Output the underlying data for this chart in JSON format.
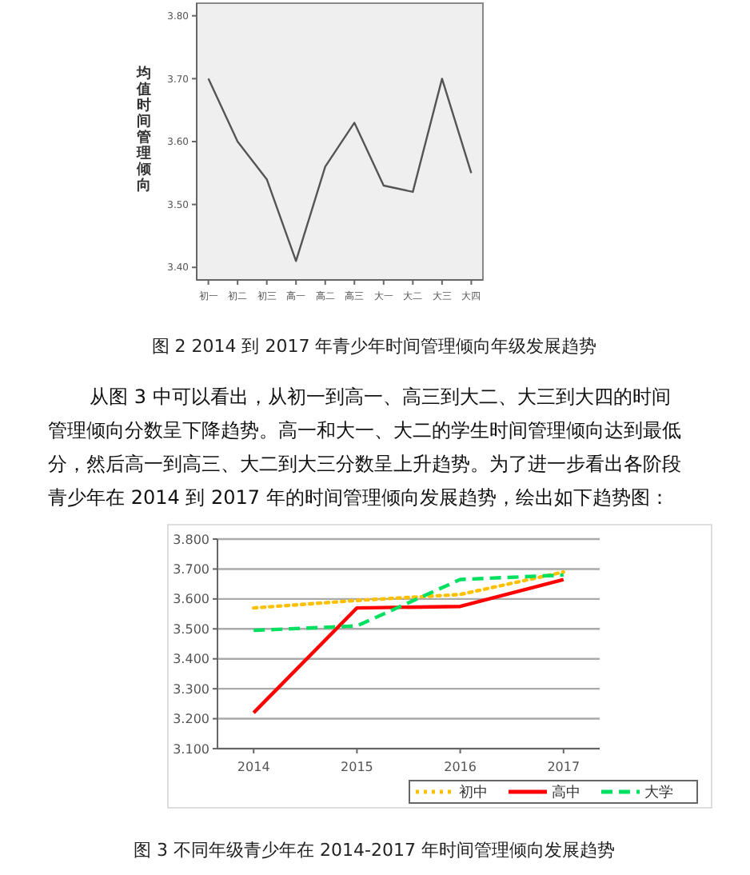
{
  "chart_data": [
    {
      "type": "line",
      "ylabel": "均值时间管理倾向",
      "categories": [
        "初一",
        "初二",
        "初三",
        "高一",
        "高二",
        "高三",
        "大一",
        "大二",
        "大三",
        "大四"
      ],
      "values": [
        3.7,
        3.6,
        3.54,
        3.41,
        3.56,
        3.63,
        3.53,
        3.52,
        3.7,
        3.55
      ],
      "color": "#555555",
      "ylim": [
        3.38,
        3.82
      ],
      "yticks": [
        {
          "value": 3.4,
          "label": "3.40"
        },
        {
          "value": 3.5,
          "label": "3.50"
        },
        {
          "value": 3.6,
          "label": "3.60"
        },
        {
          "value": 3.7,
          "label": "3.70"
        },
        {
          "value": 3.8,
          "label": "3.80"
        }
      ],
      "grid": false,
      "legend": false,
      "annotations": [
        "图 2 2014 到 2017 年青少年时间管理倾向年级发展趋势",
        "从图 3 中可以看出，从初一到高一、高三到大二、大三到大四的时间管理倾向分数呈下降趋势。高一和大一、大二的学生时间管理倾向达到最低分，然后高一到高三、大二到大三分数呈上升趋势。为了进一步看出各阶段青少年在 2014 到 2017 年的时间管理倾向发展趋势，绘出如下趋势图："
      ]
    },
    {
      "type": "line",
      "categories": [
        "2014",
        "2015",
        "2016",
        "2017"
      ],
      "series": [
        {
          "name": "初中",
          "color": "#ffc000",
          "line_style": "dotted",
          "values": [
            3.57,
            3.595,
            3.615,
            3.69
          ]
        },
        {
          "name": "高中",
          "color": "#ff0000",
          "line_style": "solid",
          "values": [
            3.22,
            3.57,
            3.575,
            3.665
          ]
        },
        {
          "name": "大学",
          "color": "#00e060",
          "line_style": "dashed",
          "values": [
            3.495,
            3.51,
            3.665,
            3.68
          ]
        }
      ],
      "ylim": [
        3.1,
        3.8
      ],
      "yticks": [
        {
          "value": 3.1,
          "label": "3.100"
        },
        {
          "value": 3.2,
          "label": "3.200"
        },
        {
          "value": 3.3,
          "label": "3.300"
        },
        {
          "value": 3.4,
          "label": "3.400"
        },
        {
          "value": 3.5,
          "label": "3.500"
        },
        {
          "value": 3.6,
          "label": "3.600"
        },
        {
          "value": 3.7,
          "label": "3.700"
        },
        {
          "value": 3.8,
          "label": "3.800"
        }
      ],
      "grid": "y",
      "legend": "bottom right",
      "annotations": [
        "图 3 不同年级青少年在 2014-2017 年时间管理倾向发展趋势"
      ]
    }
  ]
}
